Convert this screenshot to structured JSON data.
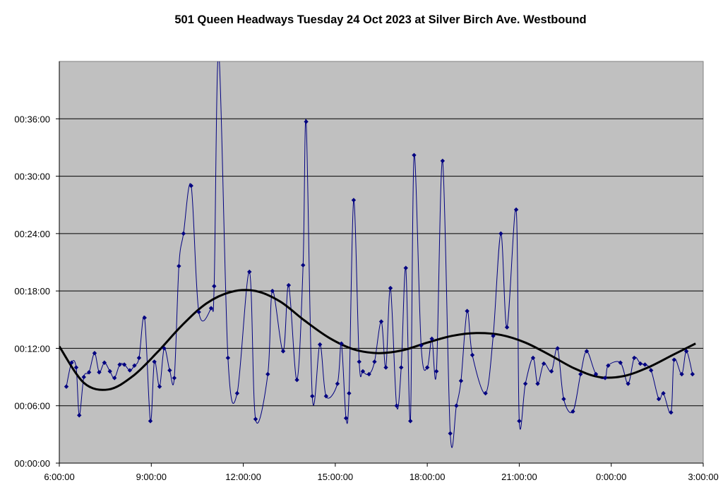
{
  "chart_data": {
    "type": "line",
    "title": "501 Queen Headways Tuesday 24 Oct 2023 at Silver Birch Ave. Westbound",
    "xlabel": "",
    "ylabel": "",
    "x_ticks": [
      "6:00:00",
      "9:00:00",
      "12:00:00",
      "15:00:00",
      "18:00:00",
      "21:00:00",
      "0:00:00",
      "3:00:00"
    ],
    "y_ticks": [
      "00:00:00",
      "00:06:00",
      "00:12:00",
      "00:18:00",
      "00:24:00",
      "00:30:00",
      "00:36:00"
    ],
    "x_unit": "hours since 6:00:00",
    "y_unit": "minutes",
    "xlim": [
      0,
      21
    ],
    "ylim": [
      0,
      42
    ],
    "grid": "horizontal",
    "legend": "none",
    "colors": {
      "series": "#000080",
      "trend": "#000000",
      "plot_bg": "#c0c0c0",
      "grid": "#000000"
    },
    "series": [
      {
        "values_x": [
          0.23,
          0.4,
          0.55,
          0.65,
          0.8,
          0.97,
          1.15,
          1.3,
          1.47,
          1.65,
          1.8,
          1.97,
          2.12,
          2.3,
          2.45,
          2.6,
          2.78,
          2.97,
          3.1,
          3.27,
          3.42,
          3.6,
          3.75,
          3.9,
          4.05,
          4.3,
          4.55,
          4.95,
          5.05,
          5.2,
          5.5,
          5.8,
          6.2,
          6.4,
          6.8,
          6.95,
          7.3,
          7.48,
          7.75,
          7.95,
          8.05,
          8.25,
          8.5,
          8.7,
          9.07,
          9.2,
          9.35,
          9.45,
          9.6,
          9.78,
          9.9,
          10.1,
          10.28,
          10.5,
          10.65,
          10.8,
          11.0,
          11.15,
          11.3,
          11.45,
          11.57,
          11.8,
          12.0,
          12.15,
          12.3,
          12.5,
          12.75,
          12.95,
          13.1,
          13.3,
          13.47,
          13.9,
          14.15,
          14.4,
          14.6,
          14.9,
          15.0,
          15.2,
          15.45,
          15.6,
          15.8,
          16.05,
          16.25,
          16.45,
          16.75,
          17.0,
          17.2,
          17.5,
          17.8,
          17.9,
          18.3,
          18.55,
          18.75,
          18.95,
          19.1,
          19.3,
          19.55,
          19.7,
          19.95,
          20.05,
          20.3,
          20.45,
          20.65
        ],
        "values_y": [
          8.0,
          10.5,
          10.0,
          5.0,
          9.0,
          9.5,
          11.5,
          9.5,
          10.5,
          9.6,
          8.9,
          10.3,
          10.3,
          9.7,
          10.2,
          11.0,
          15.2,
          4.4,
          10.6,
          8.0,
          12.0,
          9.7,
          8.9,
          20.6,
          24.0,
          29.0,
          15.8,
          16.2,
          18.5,
          43.0,
          11.0,
          7.3,
          20.0,
          4.6,
          9.3,
          18.0,
          11.7,
          18.6,
          8.7,
          20.7,
          35.7,
          7.0,
          12.4,
          7.0,
          8.3,
          12.5,
          4.7,
          7.3,
          27.5,
          10.6,
          9.6,
          9.3,
          10.6,
          14.8,
          10.0,
          18.3,
          6.0,
          10.0,
          20.4,
          4.4,
          32.2,
          12.3,
          10.0,
          13.0,
          9.6,
          31.6,
          3.1,
          6.0,
          8.6,
          15.9,
          11.3,
          7.3,
          13.3,
          24.0,
          14.2,
          26.5,
          4.4,
          8.3,
          11.0,
          8.3,
          10.4,
          9.6,
          12.0,
          6.7,
          5.4,
          9.3,
          11.7,
          9.3,
          8.9,
          10.2,
          10.5,
          8.3,
          11.0,
          10.4,
          10.3,
          9.7,
          6.7,
          7.3,
          5.3,
          10.8,
          9.3,
          11.7,
          9.3
        ]
      },
      {
        "values_x": [
          0,
          0.8,
          1.6,
          2.4,
          3.2,
          4,
          4.8,
          5.6,
          6.4,
          7.2,
          8,
          8.8,
          9.6,
          10.4,
          11.2,
          12,
          12.8,
          13.6,
          14.4,
          15.2,
          16,
          16.8,
          17.6,
          18.4,
          19.2,
          20,
          20.5,
          20.75
        ],
        "values_y": [
          12.2,
          8.4,
          7.7,
          9.1,
          11.6,
          14.4,
          16.7,
          17.9,
          18.0,
          16.9,
          14.9,
          13.1,
          11.9,
          11.5,
          11.8,
          12.6,
          13.3,
          13.6,
          13.4,
          12.6,
          11.3,
          9.9,
          9.0,
          9.1,
          10.0,
          11.3,
          12.1,
          12.5
        ]
      }
    ]
  }
}
